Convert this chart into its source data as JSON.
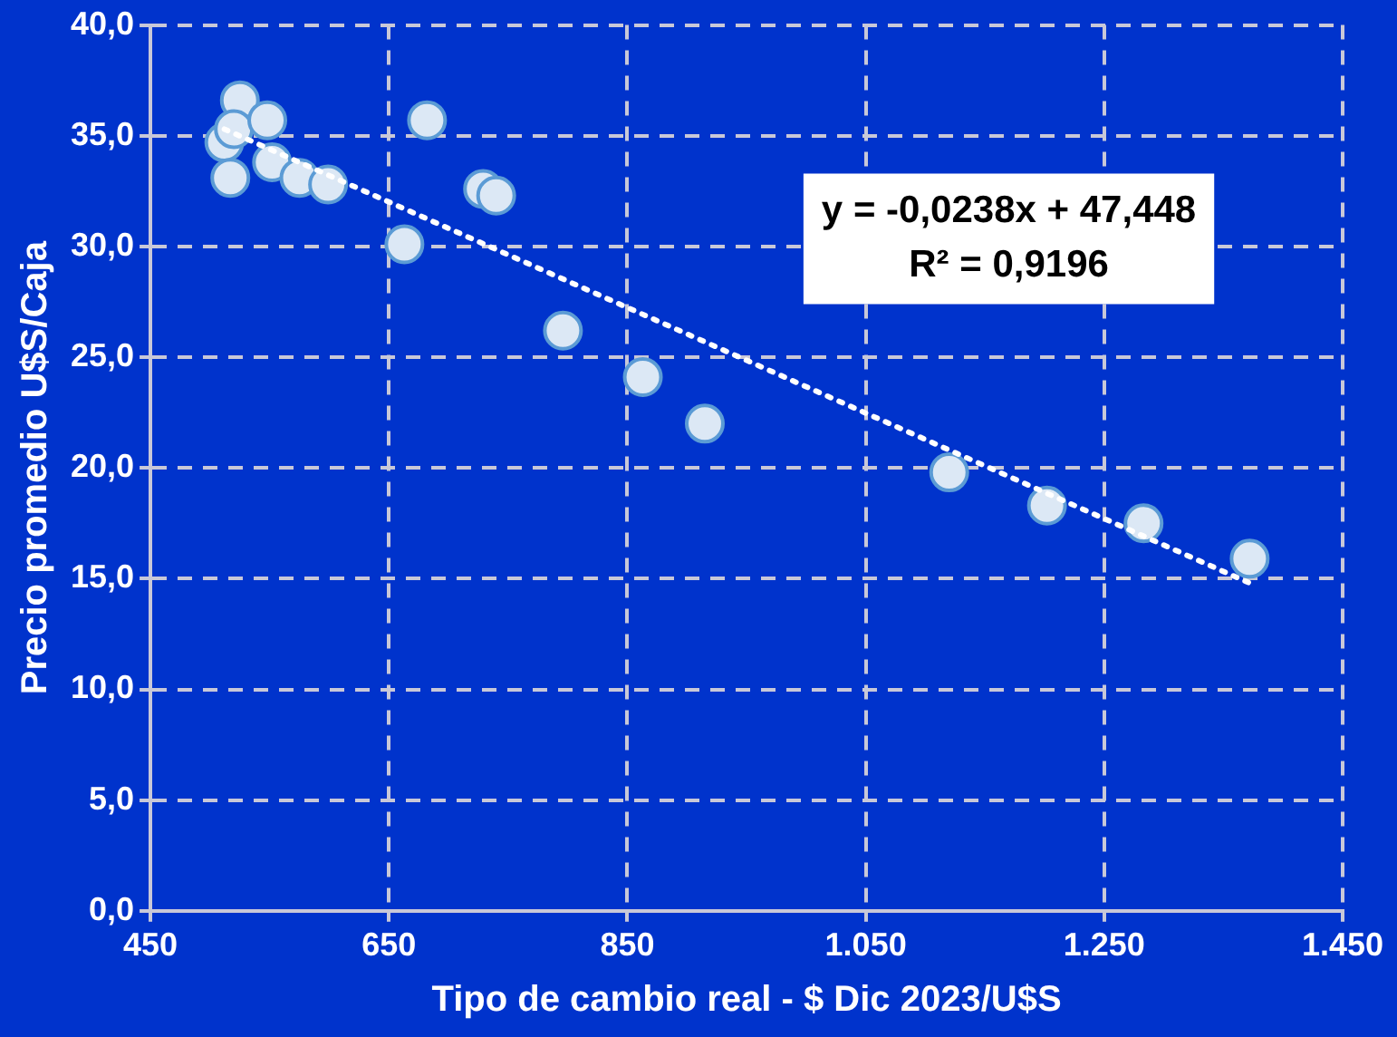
{
  "chart_data": {
    "type": "scatter",
    "xlabel": "Tipo de cambio real - $ Dic 2023/U$S",
    "ylabel": "Precio promedio U$S/Caja",
    "xlim": [
      450,
      1450
    ],
    "xticks": [
      {
        "value": 450,
        "label": "450"
      },
      {
        "value": 650,
        "label": "650"
      },
      {
        "value": 850,
        "label": "850"
      },
      {
        "value": 1050,
        "label": "1.050"
      },
      {
        "value": 1250,
        "label": "1.250"
      },
      {
        "value": 1450,
        "label": "1.450"
      }
    ],
    "ylim": [
      0,
      40
    ],
    "yticks": [
      {
        "value": 0,
        "label": "0,0"
      },
      {
        "value": 5,
        "label": "5,0"
      },
      {
        "value": 10,
        "label": "10,0"
      },
      {
        "value": 15,
        "label": "15,0"
      },
      {
        "value": 20,
        "label": "20,0"
      },
      {
        "value": 25,
        "label": "25,0"
      },
      {
        "value": 30,
        "label": "30,0"
      },
      {
        "value": 35,
        "label": "35,0"
      },
      {
        "value": 40,
        "label": "40,0"
      }
    ],
    "grid": true,
    "legend": false,
    "marker": "circle",
    "annotations": [
      "y = -0,0238x + 47,448",
      "R² = 0,9196"
    ],
    "series": [
      {
        "color": "#dce8f5",
        "x": [
          525,
          512,
          520,
          548,
          517,
          552,
          575,
          599,
          682,
          729,
          740,
          663,
          796,
          863,
          915,
          1120,
          1202,
          1283,
          1372
        ],
        "values": [
          36.6,
          34.7,
          35.3,
          35.7,
          33.1,
          33.8,
          33.1,
          32.8,
          35.7,
          32.6,
          32.3,
          30.1,
          26.2,
          24.1,
          22.0,
          19.8,
          18.3,
          17.5,
          15.9
        ]
      },
      {
        "type": "line",
        "color": "#ffffff",
        "line_style": "dotted",
        "marker": "none",
        "x": [
          512,
          1372
        ],
        "values": [
          35.3,
          14.8
        ]
      }
    ]
  }
}
